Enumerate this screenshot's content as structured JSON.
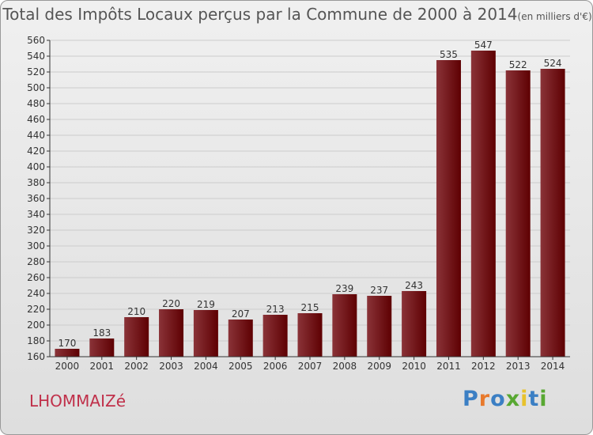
{
  "title": {
    "main": "Total des Impôts Locaux perçus par la Commune de 2000 à 2014",
    "unit": "(en milliers d'€)"
  },
  "commune": "LHOMMAIZé",
  "logo": {
    "text": "Proxiti",
    "colors": [
      "#3b7fc4",
      "#e8792c",
      "#3b7fc4",
      "#58a832",
      "#e8c22c",
      "#3b7fc4",
      "#58a832"
    ]
  },
  "colors": {
    "bar_light": "#8a3338",
    "bar_dark": "#5e0002",
    "grid": "#cccccc",
    "axis": "#333333"
  },
  "chart_data": {
    "type": "bar",
    "title": "Total des Impôts Locaux perçus par la Commune de 2000 à 2014",
    "xlabel": "",
    "ylabel": "",
    "categories": [
      "2000",
      "2001",
      "2002",
      "2003",
      "2004",
      "2005",
      "2006",
      "2007",
      "2008",
      "2009",
      "2010",
      "2011",
      "2012",
      "2013",
      "2014"
    ],
    "values": [
      170,
      183,
      210,
      220,
      219,
      207,
      213,
      215,
      239,
      237,
      243,
      535,
      547,
      522,
      524
    ],
    "ylim": [
      160,
      560
    ],
    "ytick_step": 20,
    "grid": true
  }
}
